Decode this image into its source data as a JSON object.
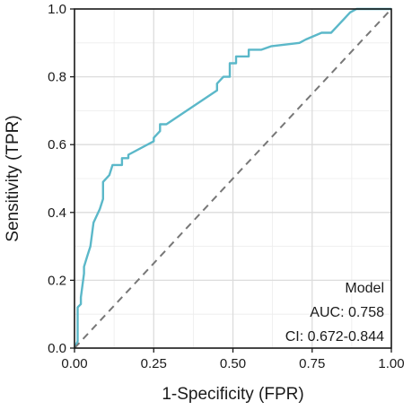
{
  "chart_data": {
    "type": "line",
    "xlabel": "1-Specificity (FPR)",
    "ylabel": "Sensitivity (TPR)",
    "xlim": [
      0,
      1
    ],
    "ylim": [
      0,
      1
    ],
    "xticks": [
      "0.00",
      "0.25",
      "0.50",
      "0.75",
      "1.00"
    ],
    "yticks": [
      "0.0",
      "0.2",
      "0.4",
      "0.6",
      "0.8",
      "1.0"
    ],
    "grid": true,
    "series": [
      {
        "color": "#5bb8c9",
        "x": [
          0.0,
          0.01,
          0.01,
          0.02,
          0.02,
          0.03,
          0.03,
          0.04,
          0.05,
          0.06,
          0.08,
          0.09,
          0.09,
          0.11,
          0.12,
          0.15,
          0.15,
          0.17,
          0.17,
          0.25,
          0.25,
          0.27,
          0.27,
          0.29,
          0.45,
          0.45,
          0.47,
          0.49,
          0.49,
          0.51,
          0.51,
          0.55,
          0.55,
          0.59,
          0.62,
          0.71,
          0.73,
          0.78,
          0.81,
          0.83,
          0.86,
          0.87,
          0.89,
          1.0
        ],
        "y": [
          0.0,
          0.02,
          0.12,
          0.13,
          0.15,
          0.22,
          0.24,
          0.27,
          0.3,
          0.37,
          0.41,
          0.44,
          0.49,
          0.51,
          0.54,
          0.54,
          0.56,
          0.56,
          0.57,
          0.61,
          0.62,
          0.64,
          0.66,
          0.66,
          0.76,
          0.78,
          0.8,
          0.8,
          0.84,
          0.84,
          0.86,
          0.86,
          0.88,
          0.88,
          0.89,
          0.9,
          0.91,
          0.93,
          0.93,
          0.95,
          0.98,
          0.99,
          1.0,
          1.0
        ]
      },
      {
        "color": "#777777",
        "dashed": true,
        "x": [
          0,
          1
        ],
        "y": [
          0,
          1
        ]
      }
    ],
    "annotations": [
      "Model",
      "AUC: 0.758",
      "CI: 0.672-0.844"
    ]
  }
}
